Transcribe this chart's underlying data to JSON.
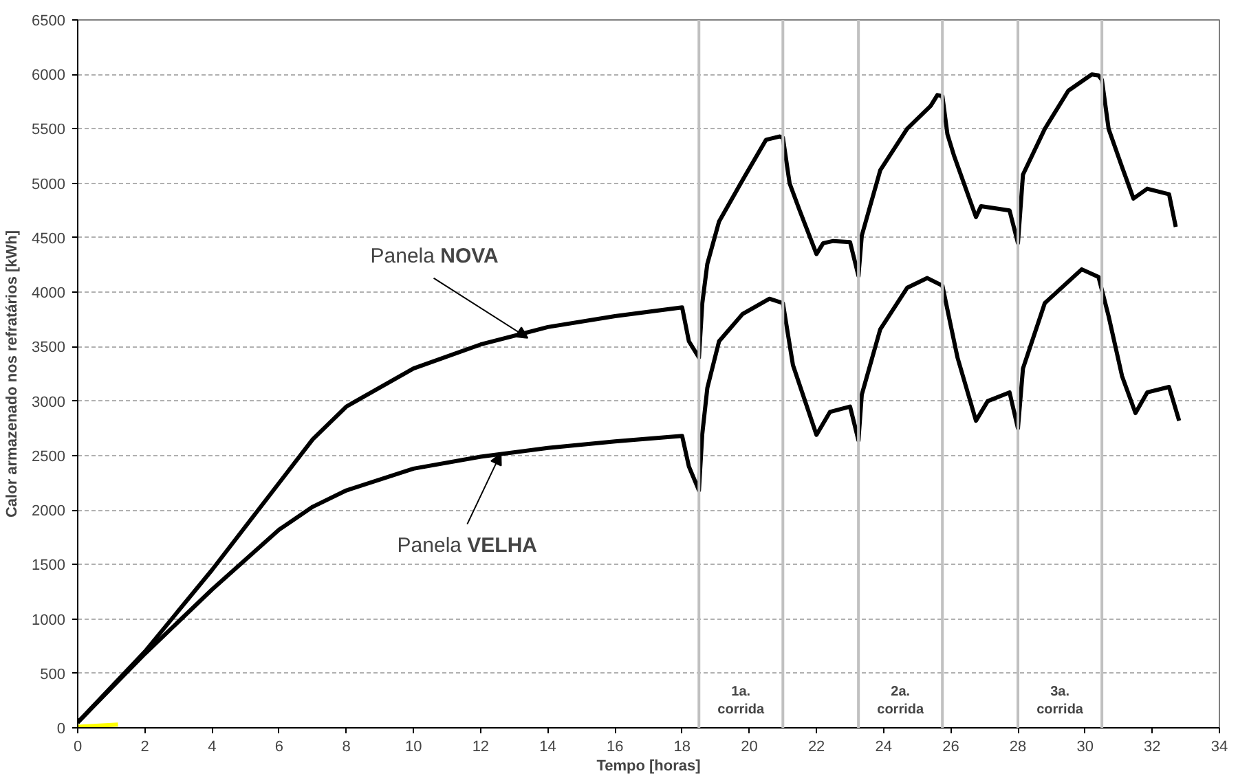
{
  "chart_data": {
    "type": "line",
    "xlabel": "Tempo [horas]",
    "ylabel": "Calor armazenado nos refratários [kWh]",
    "xlim": [
      0,
      34
    ],
    "xticks": [
      0,
      2,
      4,
      6,
      8,
      10,
      12,
      14,
      16,
      18,
      20,
      22,
      24,
      26,
      28,
      30,
      32,
      34
    ],
    "ylim": [
      0,
      6500
    ],
    "yticks": [
      0,
      500,
      1000,
      1500,
      2000,
      2500,
      3000,
      3500,
      4000,
      4500,
      5000,
      5500,
      6000,
      6500
    ],
    "grid": "y",
    "marker": "none",
    "line_style": "solid",
    "series": [
      {
        "color": "#000000",
        "x": [
          0,
          2,
          4,
          6,
          7,
          8,
          10,
          12,
          14,
          16,
          18,
          18.2,
          18.5,
          18.6,
          18.75,
          19.1,
          19.8,
          20.5,
          20.9,
          21.0,
          21.2,
          21.5,
          22.0,
          22.2,
          22.5,
          23.0,
          23.25,
          23.35,
          23.9,
          24.7,
          25.4,
          25.6,
          25.75,
          25.9,
          26.1,
          26.75,
          26.9,
          27.75,
          28.0,
          28.15,
          28.8,
          29.5,
          30.2,
          30.4,
          30.5,
          30.7,
          31.1,
          31.44,
          31.85,
          32.5,
          32.7
        ],
        "values": [
          50,
          700,
          1450,
          2250,
          2650,
          2950,
          3300,
          3520,
          3680,
          3780,
          3860,
          3550,
          3400,
          3900,
          4260,
          4650,
          5030,
          5400,
          5430,
          5420,
          5000,
          4750,
          4350,
          4450,
          4470,
          4460,
          4150,
          4520,
          5120,
          5500,
          5710,
          5810,
          5800,
          5450,
          5250,
          4690,
          4790,
          4750,
          4450,
          5080,
          5500,
          5850,
          6000,
          5990,
          5950,
          5500,
          5150,
          4860,
          4950,
          4900,
          4600
        ]
      },
      {
        "color": "#000000",
        "x": [
          0,
          2,
          4,
          6,
          7,
          8,
          10,
          12,
          14,
          16,
          18,
          18.2,
          18.5,
          18.6,
          18.75,
          19.1,
          19.8,
          20.6,
          21.0,
          21.3,
          22.0,
          22.4,
          23.0,
          23.25,
          23.35,
          23.9,
          24.7,
          25.3,
          25.75,
          26.2,
          26.75,
          27.1,
          27.75,
          28.0,
          28.15,
          28.8,
          29.9,
          30.4,
          30.7,
          31.1,
          31.5,
          31.85,
          32.5,
          32.8
        ],
        "values": [
          50,
          680,
          1270,
          1820,
          2030,
          2180,
          2380,
          2490,
          2570,
          2630,
          2680,
          2400,
          2180,
          2700,
          3120,
          3550,
          3800,
          3940,
          3900,
          3330,
          2690,
          2900,
          2950,
          2640,
          3060,
          3660,
          4040,
          4130,
          4060,
          3400,
          2820,
          3000,
          3080,
          2750,
          3300,
          3900,
          4210,
          4140,
          3780,
          3230,
          2890,
          3080,
          3130,
          2820
        ]
      },
      {
        "color": "#ffff00",
        "x": [
          0,
          1.2
        ],
        "values": [
          10,
          30
        ]
      }
    ],
    "ref_lines": [
      {
        "axis": "x",
        "value": 18.5,
        "color": "#c0c0c0"
      },
      {
        "axis": "x",
        "value": 21,
        "color": "#c0c0c0"
      },
      {
        "axis": "x",
        "value": 23.25,
        "color": "#c0c0c0"
      },
      {
        "axis": "x",
        "value": 25.75,
        "color": "#c0c0c0"
      },
      {
        "axis": "x",
        "value": 28,
        "color": "#c0c0c0"
      },
      {
        "axis": "x",
        "value": 30.5,
        "color": "#c0c0c0"
      }
    ],
    "annotations": [
      {
        "text": "Panela NOVA",
        "x": 13.4,
        "y": 3580
      },
      {
        "text": "Panela VELHA",
        "x": 12.6,
        "y": 2520
      },
      "1a.\ncorrida",
      "2a.\ncorrida",
      "3a.\ncorrida"
    ]
  }
}
